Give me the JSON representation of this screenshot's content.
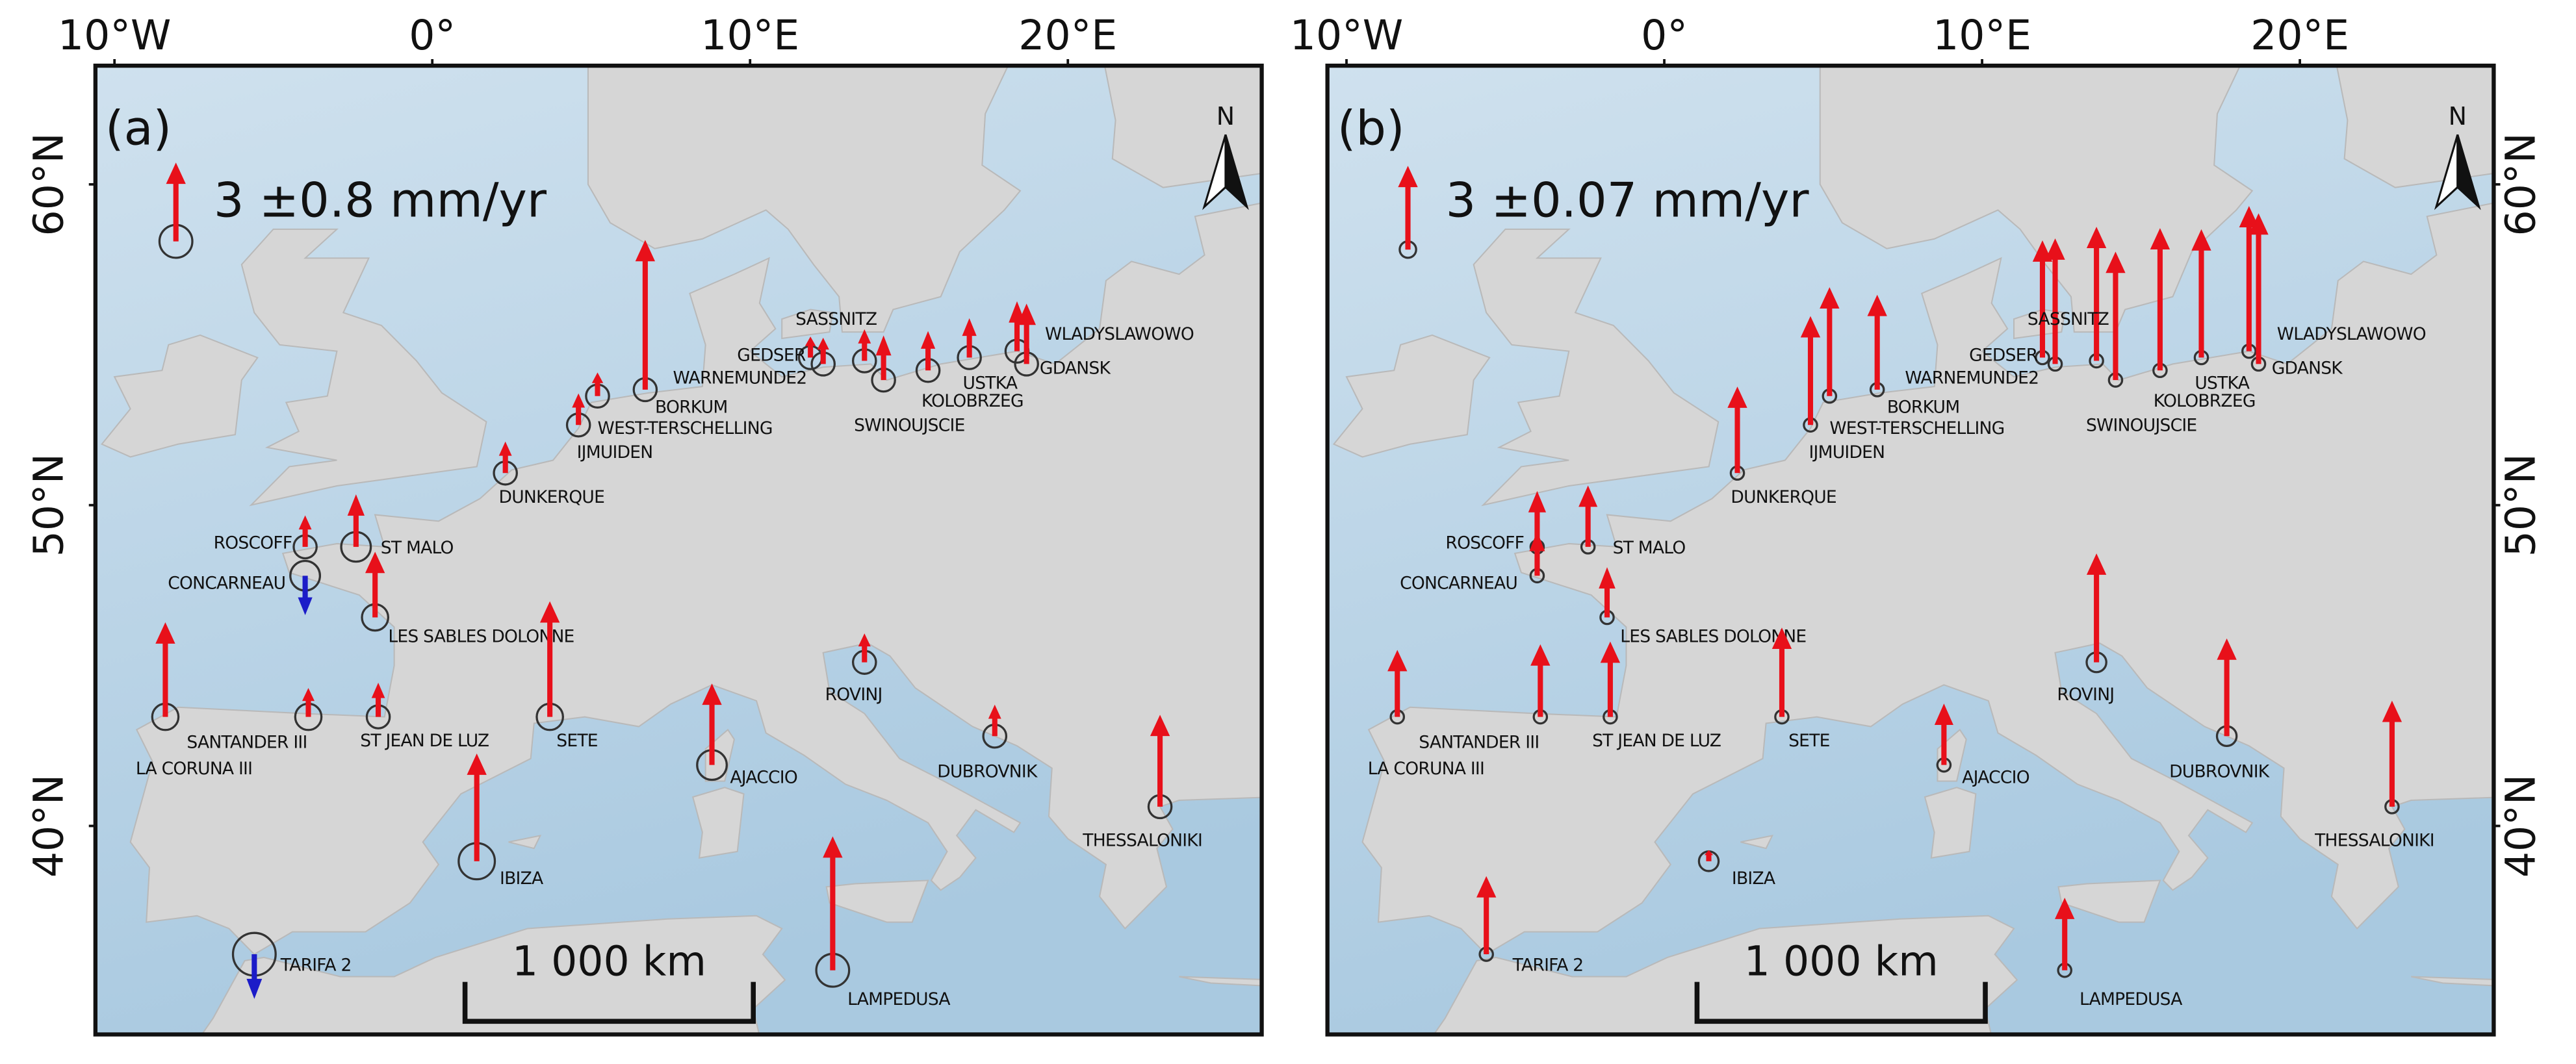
{
  "xlim": [
    -10.6,
    26.1
  ],
  "ylim": [
    33.5,
    63.7
  ],
  "xticks": [
    {
      "value": -10,
      "label": "10°W"
    },
    {
      "value": 0,
      "label": "0°"
    },
    {
      "value": 10,
      "label": "10°E"
    },
    {
      "value": 20,
      "label": "20°E"
    }
  ],
  "yticks": [
    {
      "value": 40,
      "label": "40°N"
    },
    {
      "value": 50,
      "label": "50°N"
    },
    {
      "value": 60,
      "label": "60°N"
    }
  ],
  "up_color": "#e8101a",
  "down_color": "#1c1cc8",
  "stations": [
    {
      "name": "DUNKERQUE",
      "lon": 2.3,
      "lat": 51.0
    },
    {
      "name": "ROSCOFF",
      "lon": -4.0,
      "lat": 48.7
    },
    {
      "name": "ST MALO",
      "lon": -2.4,
      "lat": 48.7
    },
    {
      "name": "CONCARNEAU",
      "lon": -4.0,
      "lat": 47.8
    },
    {
      "name": "LES SABLES DOLONNE",
      "lon": -1.8,
      "lat": 46.5
    },
    {
      "name": "SANTANDER III",
      "lon": -3.9,
      "lat": 43.4
    },
    {
      "name": "ST JEAN DE LUZ",
      "lon": -1.7,
      "lat": 43.4
    },
    {
      "name": "LA CORUNA III",
      "lon": -8.4,
      "lat": 43.4
    },
    {
      "name": "SETE",
      "lon": 3.7,
      "lat": 43.4
    },
    {
      "name": "AJACCIO",
      "lon": 8.8,
      "lat": 41.9
    },
    {
      "name": "IBIZA",
      "lon": 1.4,
      "lat": 38.9
    },
    {
      "name": "TARIFA 2",
      "lon": -5.6,
      "lat": 36.0
    },
    {
      "name": "LAMPEDUSA",
      "lon": 12.6,
      "lat": 35.5
    },
    {
      "name": "ROVINJ",
      "lon": 13.6,
      "lat": 45.1
    },
    {
      "name": "DUBROVNIK",
      "lon": 17.7,
      "lat": 42.8
    },
    {
      "name": "THESSALONIKI",
      "lon": 22.9,
      "lat": 40.6
    },
    {
      "name": "IJMUIDEN",
      "lon": 4.6,
      "lat": 52.5
    },
    {
      "name": "WEST-TERSCHELLING",
      "lon": 5.2,
      "lat": 53.4
    },
    {
      "name": "BORKUM",
      "lon": 6.7,
      "lat": 53.6
    },
    {
      "name": "GEDSER",
      "lon": 11.9,
      "lat": 54.6
    },
    {
      "name": "WARNEMUNDE2",
      "lon": 12.3,
      "lat": 54.4
    },
    {
      "name": "SASSNITZ",
      "lon": 13.6,
      "lat": 54.5
    },
    {
      "name": "SWINOUJSCIE",
      "lon": 14.2,
      "lat": 53.9
    },
    {
      "name": "KOLOBRZEG",
      "lon": 15.6,
      "lat": 54.2
    },
    {
      "name": "USTKA",
      "lon": 16.9,
      "lat": 54.6
    },
    {
      "name": "WLADYSLAWOWO",
      "lon": 18.4,
      "lat": 54.8
    },
    {
      "name": "GDANSK",
      "lon": 18.7,
      "lat": 54.4
    }
  ],
  "maps": [
    {
      "panel_label": "(a)",
      "north": "N",
      "legend": {
        "label": "3 ±0.8 mm/yr",
        "value": 3,
        "uncertainty": 0.8
      },
      "scale_bar": {
        "label": "1 000 km",
        "value": 1000
      },
      "values": [
        1.2,
        1.2,
        2.0,
        -1.5,
        2.5,
        1.1,
        1.3,
        3.6,
        4.4,
        3.1,
        4.1,
        -1.7,
        5.1,
        1.1,
        1.2,
        3.5,
        1.2,
        0.9,
        5.7,
        0.8,
        1.0,
        1.2,
        1.7,
        1.5,
        1.5,
        1.9,
        2.3
      ],
      "uncertainties": [
        0.39,
        0.39,
        0.65,
        0.65,
        0.51,
        0.51,
        0.39,
        0.51,
        0.51,
        0.65,
        0.97,
        1.35,
        0.8,
        0.39,
        0.39,
        0.39,
        0.39,
        0.39,
        0.39,
        0.39,
        0.39,
        0.39,
        0.39,
        0.39,
        0.39,
        0.39,
        0.39
      ]
    },
    {
      "panel_label": "(b)",
      "north": "N",
      "legend": {
        "label": "3 ±0.07 mm/yr",
        "value": 3,
        "uncertainty": 0.07
      },
      "scale_bar": {
        "label": "1 000 km",
        "value": 1000
      },
      "values": [
        3.1,
        2.0,
        2.2,
        1.6,
        1.8,
        2.6,
        2.7,
        2.4,
        3.2,
        2.2,
        0.4,
        2.8,
        2.6,
        3.9,
        3.5,
        3.8,
        3.9,
        3.9,
        3.4,
        4.2,
        4.5,
        4.8,
        4.6,
        5.1,
        4.6,
        5.2,
        5.4
      ],
      "uncertainties": [
        0.045,
        0.045,
        0.045,
        0.045,
        0.045,
        0.045,
        0.045,
        0.045,
        0.045,
        0.045,
        0.1,
        0.045,
        0.045,
        0.1,
        0.1,
        0.045,
        0.045,
        0.045,
        0.045,
        0.045,
        0.045,
        0.045,
        0.045,
        0.045,
        0.045,
        0.045,
        0.045
      ]
    }
  ]
}
